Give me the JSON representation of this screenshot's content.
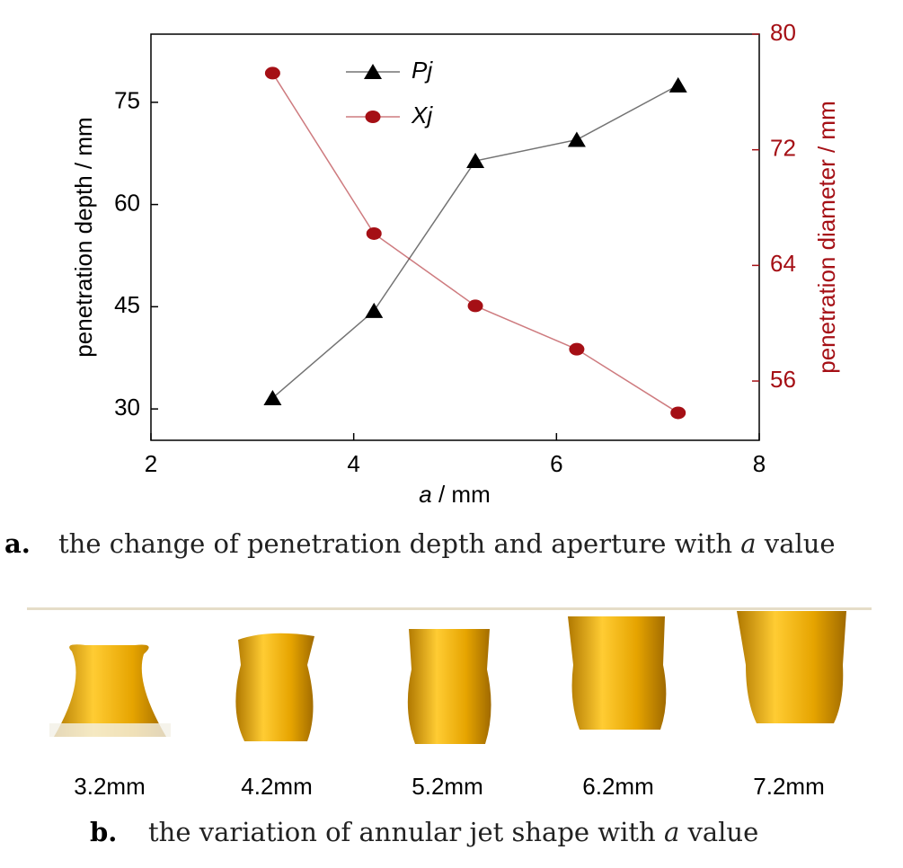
{
  "chart_data": {
    "type": "line",
    "x_label": [
      "a",
      " / mm"
    ],
    "y_label": "penetration depth / mm",
    "y2_label": "penetration diameter / mm",
    "x": [
      3.2,
      4.2,
      5.2,
      6.2,
      7.2
    ],
    "series": [
      {
        "name": "Pj",
        "color": "#000000",
        "marker": "triangle",
        "values": [
          31.6,
          44.4,
          66.4,
          69.5,
          77.5
        ]
      },
      {
        "name": "Xj",
        "color": "#a50f15",
        "marker": "circle",
        "axis": "y2",
        "values": [
          77.3,
          66.2,
          61.2,
          58.2,
          53.8
        ]
      }
    ],
    "xlim": [
      2,
      8
    ],
    "xticks": [
      2,
      4,
      6,
      8
    ],
    "ylim": [
      25.4,
      85
    ],
    "yticks": [
      30,
      45,
      60,
      75
    ],
    "y2lim": [
      51.9,
      80
    ],
    "y2ticks": [
      56,
      64,
      72,
      80
    ],
    "y2_color": "#a50f15"
  },
  "caption_a": {
    "label": "a.",
    "text": [
      "the change of penetration depth and aperture with ",
      "a",
      " value"
    ]
  },
  "panel_b": {
    "labels": [
      "3.2mm",
      "4.2mm",
      "5.2mm",
      "6.2mm",
      "7.2mm"
    ]
  },
  "caption_b": {
    "label": "b.",
    "text": [
      "the variation of annular jet shape with ",
      "a",
      " value"
    ]
  }
}
